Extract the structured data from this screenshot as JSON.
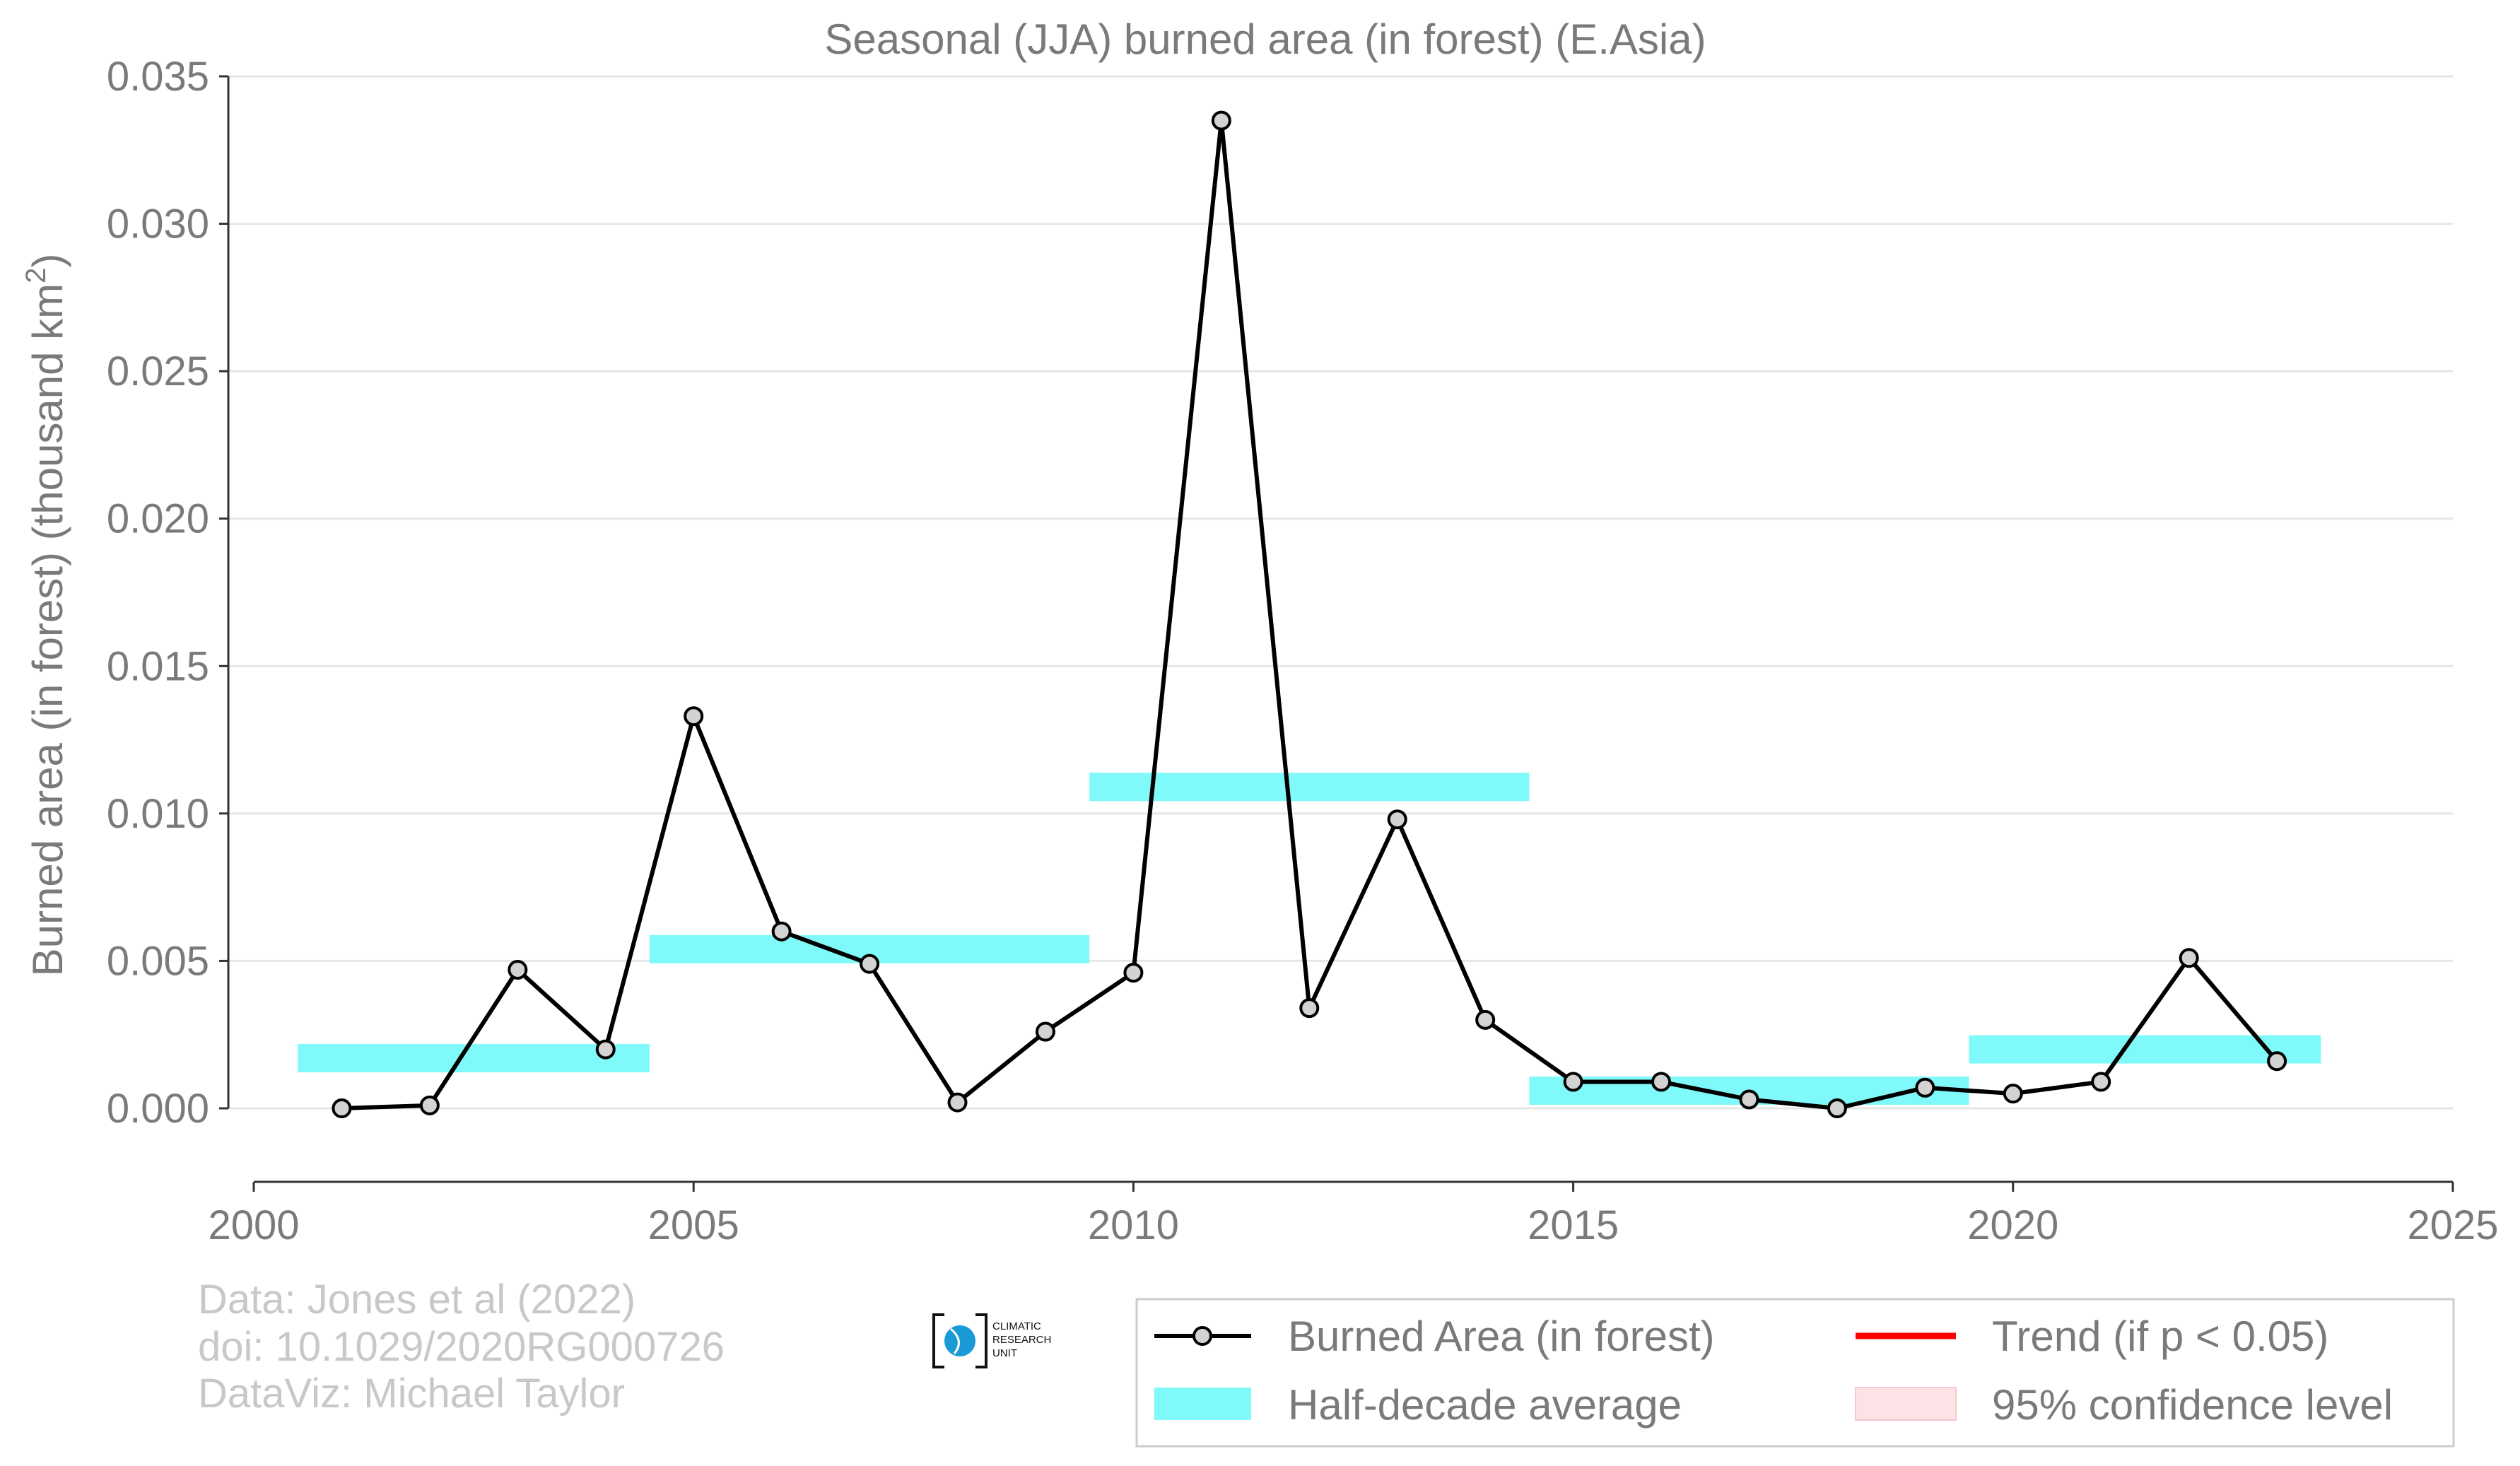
{
  "chart_data": {
    "type": "line",
    "title": "Seasonal (JJA) burned area (in forest) (E.Asia)",
    "ylabel": "Burned area (in forest) (thousand km",
    "ylabel_sup": "2",
    "ylabel_close": ")",
    "xlim": [
      2000,
      2025
    ],
    "ylim": [
      -0.0025,
      0.035
    ],
    "x_ticks": [
      2000,
      2005,
      2010,
      2015,
      2020,
      2025
    ],
    "x_tick_labels": [
      "2000",
      "2005",
      "2010",
      "2015",
      "2020",
      "2025"
    ],
    "y_ticks": [
      0.0,
      0.005,
      0.01,
      0.015,
      0.02,
      0.025,
      0.03,
      0.035
    ],
    "y_tick_labels": [
      "0.000",
      "0.005",
      "0.010",
      "0.015",
      "0.020",
      "0.025",
      "0.030",
      "0.035"
    ],
    "grid": "horizontal",
    "series": [
      {
        "name": "Burned Area (in forest)",
        "color": "#000000",
        "marker_fill": "#d3d3d3",
        "x": [
          2001,
          2002,
          2003,
          2004,
          2005,
          2006,
          2007,
          2008,
          2009,
          2010,
          2011,
          2012,
          2013,
          2014,
          2015,
          2016,
          2017,
          2018,
          2019,
          2020,
          2021,
          2022,
          2023
        ],
        "y": [
          0.0,
          0.0001,
          0.0047,
          0.002,
          0.0133,
          0.006,
          0.0049,
          0.0002,
          0.0026,
          0.0046,
          0.0335,
          0.0034,
          0.0098,
          0.003,
          0.0009,
          0.0009,
          0.0003,
          0.0,
          0.0007,
          0.0005,
          0.0009,
          0.0051,
          0.0016
        ]
      }
    ],
    "half_decade_average": {
      "name": "Half-decade average",
      "color": "#7ff9f9",
      "segments": [
        {
          "x0": 2000.5,
          "x1": 2004.5,
          "y": 0.0017
        },
        {
          "x0": 2004.5,
          "x1": 2009.5,
          "y": 0.0054
        },
        {
          "x0": 2009.5,
          "x1": 2014.5,
          "y": 0.0109
        },
        {
          "x0": 2014.5,
          "x1": 2019.5,
          "y": 0.0006
        },
        {
          "x0": 2019.5,
          "x1": 2023.5,
          "y": 0.002
        }
      ]
    },
    "legend": {
      "placement": "bottom-right",
      "items": [
        {
          "label": "Burned Area (in forest)",
          "kind": "line-marker",
          "color": "#000000"
        },
        {
          "label": "Trend (if p < 0.05)",
          "kind": "line",
          "color": "#ff0000"
        },
        {
          "label": "Half-decade average",
          "kind": "band",
          "color": "#7ff9f9"
        },
        {
          "label": "95% confidence level",
          "kind": "band",
          "color": "#fde3e6"
        }
      ]
    }
  },
  "credits": {
    "line1": "Data: Jones et al (2022)",
    "line2": "doi: 10.1029/2020RG000726",
    "line3": "DataViz: Michael Taylor"
  },
  "logo": {
    "line1": "CLIMATIC",
    "line2": "RESEARCH",
    "line3": "UNIT",
    "accent": "#1a9ad6"
  }
}
